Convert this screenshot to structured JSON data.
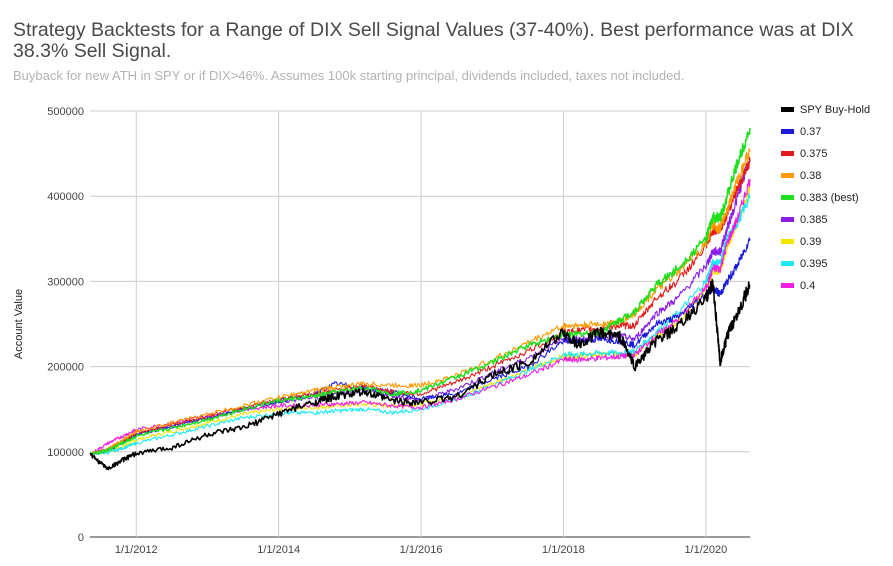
{
  "chart_data": {
    "type": "line",
    "title": "Strategy Backtests for a Range of DIX Sell Signal Values (37-40%). Best performance was at DIX 38.3% Sell Signal.",
    "subtitle": "Buyback for new ATH in SPY or if DIX>46%. Assumes 100k starting principal, dividends included, taxes not included.",
    "xlabel": "",
    "ylabel": "Account Value",
    "xlim": [
      2011.35,
      2020.62
    ],
    "ylim": [
      0,
      500000
    ],
    "x_ticks": [
      2012,
      2014,
      2016,
      2018,
      2020
    ],
    "x_tick_labels": [
      "1/1/2012",
      "1/1/2014",
      "1/1/2016",
      "1/1/2018",
      "1/1/2020"
    ],
    "y_ticks": [
      0,
      100000,
      200000,
      300000,
      400000,
      500000
    ],
    "y_tick_labels": [
      "0",
      "100000",
      "200000",
      "300000",
      "400000",
      "500000"
    ],
    "grid": true,
    "legend_position": "right",
    "x": [
      2011.35,
      2011.6,
      2011.8,
      2012.0,
      2012.5,
      2013.0,
      2013.5,
      2014.0,
      2014.5,
      2014.8,
      2015.2,
      2015.6,
      2016.0,
      2016.5,
      2017.0,
      2017.5,
      2018.0,
      2018.2,
      2018.5,
      2018.8,
      2019.0,
      2019.3,
      2019.6,
      2020.0,
      2020.1,
      2020.2,
      2020.3,
      2020.45,
      2020.62
    ],
    "series": [
      {
        "name": "SPY Buy-Hold",
        "color": "#000000",
        "values": [
          97000,
          80000,
          90000,
          98000,
          105000,
          120000,
          128000,
          145000,
          158000,
          165000,
          170000,
          160000,
          158000,
          165000,
          190000,
          205000,
          240000,
          225000,
          240000,
          235000,
          200000,
          230000,
          245000,
          280000,
          298000,
          205000,
          235000,
          265000,
          295000
        ]
      },
      {
        "name": "0.37",
        "color": "#1a1adb",
        "values": [
          97000,
          102000,
          110000,
          120000,
          130000,
          140000,
          150000,
          160000,
          168000,
          180000,
          175000,
          170000,
          162000,
          168000,
          185000,
          200000,
          230000,
          230000,
          232000,
          230000,
          225000,
          250000,
          258000,
          285000,
          292000,
          285000,
          300000,
          320000,
          350000
        ]
      },
      {
        "name": "0.375",
        "color": "#e31a1a",
        "values": [
          97000,
          103000,
          112000,
          122000,
          132000,
          142000,
          152000,
          162000,
          168000,
          172000,
          178000,
          170000,
          168000,
          182000,
          200000,
          218000,
          240000,
          242000,
          245000,
          248000,
          248000,
          280000,
          300000,
          340000,
          360000,
          360000,
          380000,
          410000,
          440000
        ]
      },
      {
        "name": "0.38",
        "color": "#ff9900",
        "values": [
          97000,
          104000,
          113000,
          124000,
          134000,
          144000,
          154000,
          164000,
          172000,
          176000,
          180000,
          178000,
          178000,
          190000,
          208000,
          228000,
          248000,
          248000,
          250000,
          252000,
          262000,
          290000,
          310000,
          345000,
          365000,
          362000,
          385000,
          420000,
          455000
        ]
      },
      {
        "name": "0.383 (best)",
        "color": "#1ee01e",
        "values": [
          97000,
          102000,
          110000,
          118000,
          128000,
          138000,
          150000,
          160000,
          165000,
          170000,
          175000,
          168000,
          172000,
          188000,
          205000,
          225000,
          238000,
          238000,
          240000,
          255000,
          265000,
          295000,
          315000,
          350000,
          375000,
          375000,
          400000,
          440000,
          480000
        ]
      },
      {
        "name": "0.385",
        "color": "#8a1ee6",
        "values": [
          97000,
          103000,
          111000,
          120000,
          130000,
          140000,
          150000,
          158000,
          164000,
          168000,
          172000,
          166000,
          160000,
          174000,
          192000,
          210000,
          232000,
          232000,
          234000,
          236000,
          232000,
          262000,
          280000,
          318000,
          335000,
          335000,
          362000,
          400000,
          445000
        ]
      },
      {
        "name": "0.39",
        "color": "#f2e600",
        "values": [
          97000,
          100000,
          106000,
          114000,
          124000,
          134000,
          144000,
          150000,
          152000,
          154000,
          156000,
          154000,
          156000,
          165000,
          180000,
          196000,
          212000,
          212000,
          214000,
          215000,
          214000,
          235000,
          252000,
          290000,
          312000,
          312000,
          340000,
          370000,
          410000
        ]
      },
      {
        "name": "0.395",
        "color": "#1ee8f5",
        "values": [
          97000,
          99000,
          104000,
          110000,
          120000,
          130000,
          140000,
          145000,
          146000,
          148000,
          150000,
          146000,
          150000,
          162000,
          178000,
          195000,
          214000,
          214000,
          216000,
          216000,
          218000,
          240000,
          262000,
          300000,
          322000,
          322000,
          350000,
          370000,
          400000
        ]
      },
      {
        "name": "0.4",
        "color": "#f21ee6",
        "values": [
          97000,
          110000,
          118000,
          126000,
          134000,
          142000,
          150000,
          154000,
          155000,
          156000,
          158000,
          154000,
          152000,
          162000,
          176000,
          190000,
          208000,
          208000,
          210000,
          212000,
          214000,
          236000,
          255000,
          292000,
          315000,
          315000,
          345000,
          375000,
          420000
        ]
      }
    ]
  }
}
